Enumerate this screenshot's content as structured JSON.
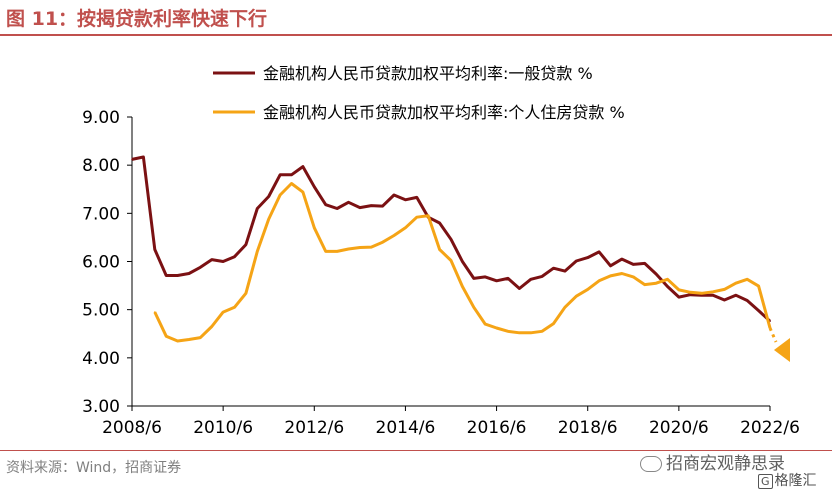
{
  "header": {
    "title": "图 11：按揭贷款利率快速下行"
  },
  "footer": {
    "source": "资料来源：Wind，招商证券",
    "watermark": "招商宏观静思录",
    "brand": "格隆汇",
    "brand_mark": "G"
  },
  "colors": {
    "accent": "#c0504d",
    "series1": "#7b1113",
    "series2": "#f5a416",
    "axis": "#000000"
  },
  "icons": {
    "watermark": "wechat-icon",
    "end_marker": "triangle-marker"
  },
  "chart_data": {
    "type": "line",
    "title": "",
    "xlabel": "",
    "ylabel": "",
    "ylim": [
      3.0,
      9.0
    ],
    "yticks": [
      "3.00",
      "4.00",
      "5.00",
      "6.00",
      "7.00",
      "8.00",
      "9.00"
    ],
    "xticks": [
      "2008/6",
      "2010/6",
      "2012/6",
      "2014/6",
      "2016/6",
      "2018/6",
      "2020/6",
      "2022/6"
    ],
    "grid": false,
    "legend_position": "top-left",
    "series": [
      {
        "name": "金融机构人民币贷款加权平均利率:一般贷款 %",
        "color": "#7b1113",
        "points": [
          [
            "2008/6",
            8.12
          ],
          [
            "2008/9",
            8.17
          ],
          [
            "2008/12",
            6.25
          ],
          [
            "2009/3",
            5.71
          ],
          [
            "2009/6",
            5.71
          ],
          [
            "2009/9",
            5.75
          ],
          [
            "2009/12",
            5.88
          ],
          [
            "2010/3",
            6.04
          ],
          [
            "2010/6",
            6.0
          ],
          [
            "2010/9",
            6.1
          ],
          [
            "2010/12",
            6.35
          ],
          [
            "2011/3",
            7.1
          ],
          [
            "2011/6",
            7.35
          ],
          [
            "2011/9",
            7.8
          ],
          [
            "2011/12",
            7.8
          ],
          [
            "2012/3",
            7.97
          ],
          [
            "2012/6",
            7.55
          ],
          [
            "2012/9",
            7.18
          ],
          [
            "2012/12",
            7.1
          ],
          [
            "2013/3",
            7.23
          ],
          [
            "2013/6",
            7.12
          ],
          [
            "2013/9",
            7.16
          ],
          [
            "2013/12",
            7.15
          ],
          [
            "2014/3",
            7.38
          ],
          [
            "2014/6",
            7.28
          ],
          [
            "2014/9",
            7.33
          ],
          [
            "2014/12",
            6.92
          ],
          [
            "2015/3",
            6.8
          ],
          [
            "2015/6",
            6.46
          ],
          [
            "2015/9",
            6.0
          ],
          [
            "2015/12",
            5.65
          ],
          [
            "2016/3",
            5.68
          ],
          [
            "2016/6",
            5.6
          ],
          [
            "2016/9",
            5.65
          ],
          [
            "2016/12",
            5.44
          ],
          [
            "2017/3",
            5.63
          ],
          [
            "2017/6",
            5.69
          ],
          [
            "2017/9",
            5.86
          ],
          [
            "2017/12",
            5.8
          ],
          [
            "2018/3",
            6.01
          ],
          [
            "2018/6",
            6.08
          ],
          [
            "2018/9",
            6.2
          ],
          [
            "2018/12",
            5.91
          ],
          [
            "2019/3",
            6.05
          ],
          [
            "2019/6",
            5.94
          ],
          [
            "2019/9",
            5.96
          ],
          [
            "2019/12",
            5.74
          ],
          [
            "2020/3",
            5.48
          ],
          [
            "2020/6",
            5.26
          ],
          [
            "2020/9",
            5.31
          ],
          [
            "2020/12",
            5.3
          ],
          [
            "2021/3",
            5.3
          ],
          [
            "2021/6",
            5.2
          ],
          [
            "2021/9",
            5.3
          ],
          [
            "2021/12",
            5.19
          ],
          [
            "2022/3",
            4.98
          ],
          [
            "2022/6",
            4.76
          ]
        ]
      },
      {
        "name": "金融机构人民币贷款加权平均利率:个人住房贷款 %",
        "color": "#f5a416",
        "points": [
          [
            "2008/12",
            4.95
          ],
          [
            "2009/3",
            4.45
          ],
          [
            "2009/6",
            4.35
          ],
          [
            "2009/9",
            4.38
          ],
          [
            "2009/12",
            4.42
          ],
          [
            "2010/3",
            4.65
          ],
          [
            "2010/6",
            4.95
          ],
          [
            "2010/9",
            5.05
          ],
          [
            "2010/12",
            5.34
          ],
          [
            "2011/3",
            6.21
          ],
          [
            "2011/6",
            6.88
          ],
          [
            "2011/9",
            7.38
          ],
          [
            "2011/12",
            7.62
          ],
          [
            "2012/3",
            7.44
          ],
          [
            "2012/6",
            6.7
          ],
          [
            "2012/9",
            6.21
          ],
          [
            "2012/12",
            6.21
          ],
          [
            "2013/3",
            6.26
          ],
          [
            "2013/6",
            6.29
          ],
          [
            "2013/9",
            6.3
          ],
          [
            "2013/12",
            6.4
          ],
          [
            "2014/3",
            6.54
          ],
          [
            "2014/6",
            6.7
          ],
          [
            "2014/9",
            6.92
          ],
          [
            "2014/12",
            6.95
          ],
          [
            "2015/3",
            6.25
          ],
          [
            "2015/6",
            6.02
          ],
          [
            "2015/9",
            5.48
          ],
          [
            "2015/12",
            5.05
          ],
          [
            "2016/3",
            4.7
          ],
          [
            "2016/6",
            4.62
          ],
          [
            "2016/9",
            4.55
          ],
          [
            "2016/12",
            4.52
          ],
          [
            "2017/3",
            4.52
          ],
          [
            "2017/6",
            4.55
          ],
          [
            "2017/9",
            4.71
          ],
          [
            "2017/12",
            5.05
          ],
          [
            "2018/3",
            5.28
          ],
          [
            "2018/6",
            5.42
          ],
          [
            "2018/9",
            5.6
          ],
          [
            "2018/12",
            5.7
          ],
          [
            "2019/3",
            5.75
          ],
          [
            "2019/6",
            5.68
          ],
          [
            "2019/9",
            5.52
          ],
          [
            "2019/12",
            5.55
          ],
          [
            "2020/3",
            5.63
          ],
          [
            "2020/6",
            5.41
          ],
          [
            "2020/9",
            5.36
          ],
          [
            "2020/12",
            5.34
          ],
          [
            "2021/3",
            5.37
          ],
          [
            "2021/6",
            5.42
          ],
          [
            "2021/9",
            5.55
          ],
          [
            "2021/12",
            5.63
          ],
          [
            "2022/3",
            5.49
          ],
          [
            "2022/6",
            4.62
          ]
        ]
      }
    ]
  }
}
